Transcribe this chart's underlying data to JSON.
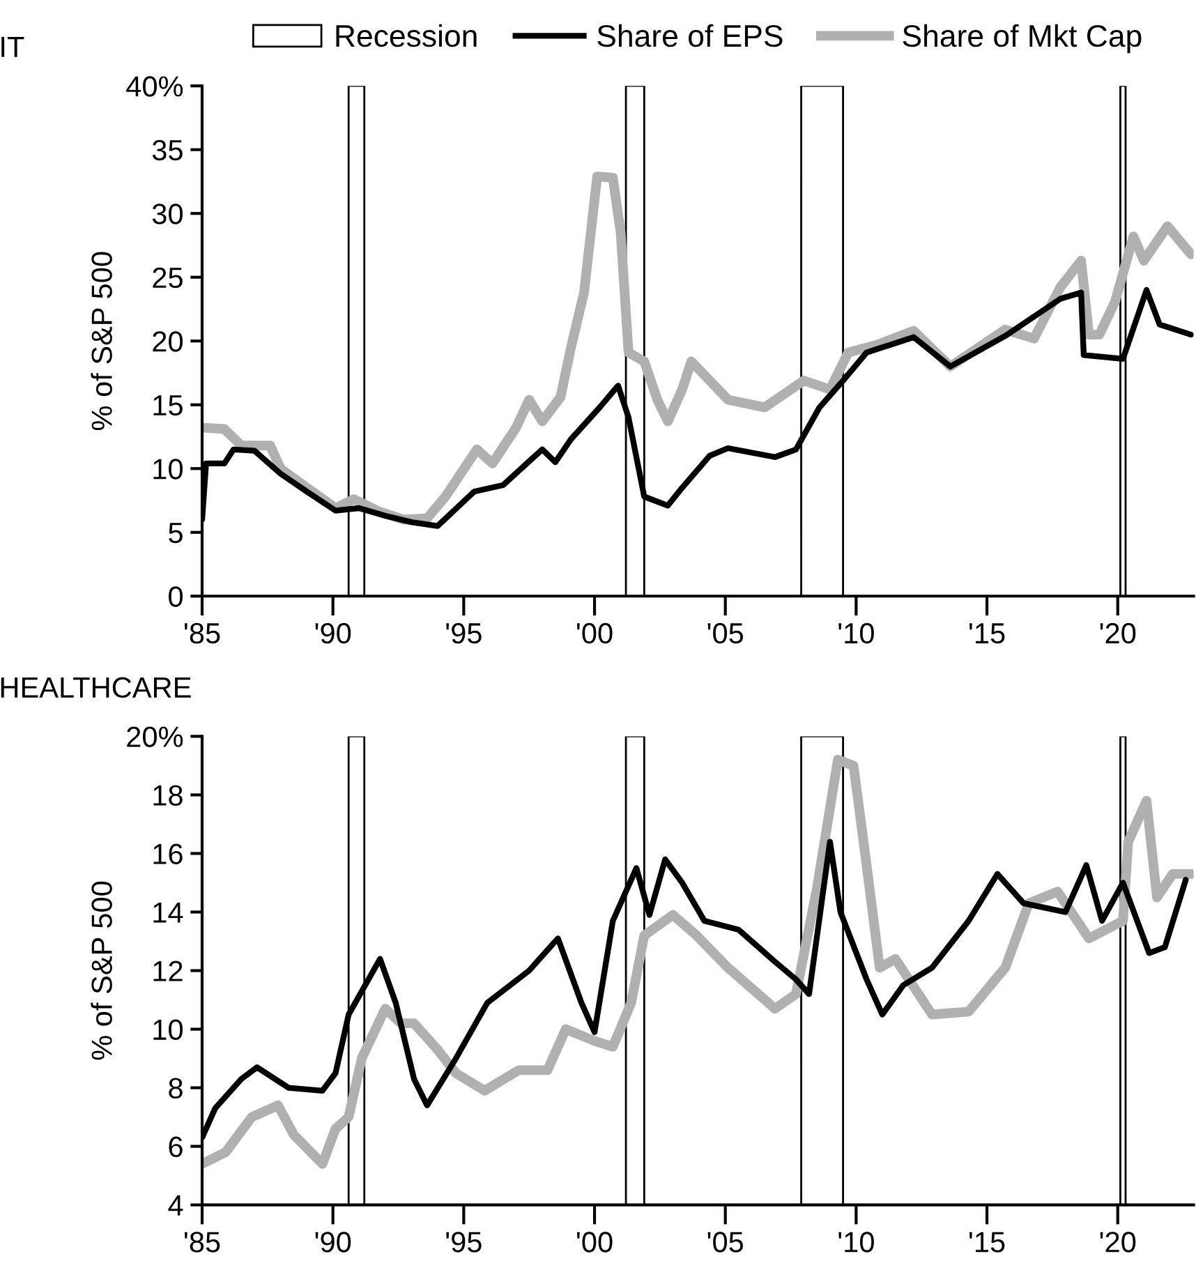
{
  "chart_data": [
    {
      "type": "line",
      "title": "IT",
      "ylabel": "% of S&P 500",
      "legend": "top",
      "xlim": [
        1985,
        2022.9
      ],
      "xticks": [
        {
          "value": 1985,
          "label": "'85"
        },
        {
          "value": 1990,
          "label": "'90"
        },
        {
          "value": 1995,
          "label": "'95"
        },
        {
          "value": 2000,
          "label": "'00"
        },
        {
          "value": 2005,
          "label": "'05"
        },
        {
          "value": 2010,
          "label": "'10"
        },
        {
          "value": 2015,
          "label": "'15"
        },
        {
          "value": 2020,
          "label": "'20"
        }
      ],
      "ylim": [
        0,
        40
      ],
      "yticks": [
        0,
        5,
        10,
        15,
        20,
        25,
        30,
        35,
        {
          "value": 40,
          "label": "40%"
        }
      ],
      "bands": [
        {
          "axis": "x",
          "from": 1990.6,
          "to": 1991.2,
          "label": "Recession",
          "color": "#ffffff"
        },
        {
          "axis": "x",
          "from": 2001.2,
          "to": 2001.9,
          "color": "#ffffff"
        },
        {
          "axis": "x",
          "from": 2007.9,
          "to": 2009.5,
          "color": "#ffffff"
        },
        {
          "axis": "x",
          "from": 2020.1,
          "to": 2020.3,
          "color": "#ffffff"
        }
      ],
      "series": [
        {
          "name": "Share of EPS",
          "color": "#000000",
          "x": [
            1985.0,
            1985.15,
            1985.85,
            1986.2,
            1987.0,
            1988.0,
            1989.0,
            1990.1,
            1991.0,
            1992.0,
            1993.0,
            1994.0,
            1995.4,
            1996.5,
            1998.0,
            1998.5,
            1999.1,
            2000.2,
            2000.9,
            2001.3,
            2001.9,
            2002.8,
            2003.35,
            2004.4,
            2005.1,
            2006.9,
            2007.7,
            2008.6,
            2009.5,
            2010.4,
            2012.2,
            2013.6,
            2015.7,
            2017.8,
            2018.6,
            2018.7,
            2020.2,
            2021.1,
            2021.6,
            2022.8
          ],
          "values": [
            6.0,
            10.4,
            10.4,
            11.5,
            11.4,
            9.6,
            8.2,
            6.7,
            6.9,
            6.3,
            5.8,
            5.5,
            8.2,
            8.7,
            11.5,
            10.5,
            12.3,
            14.8,
            16.5,
            14.0,
            7.8,
            7.1,
            8.5,
            11.0,
            11.6,
            10.9,
            11.5,
            14.8,
            16.9,
            19.1,
            20.3,
            18.0,
            20.4,
            23.3,
            23.8,
            18.9,
            18.6,
            24.0,
            21.3,
            20.5
          ]
        },
        {
          "name": "Share of Mkt Cap",
          "color": "#b0b0b0",
          "x": [
            1985.05,
            1985.85,
            1986.5,
            1987.6,
            1988.0,
            1989.0,
            1990.1,
            1990.8,
            1991.8,
            1992.7,
            1993.6,
            1994.3,
            1995.5,
            1996.1,
            1997.0,
            1997.5,
            1998.0,
            1998.7,
            1999.1,
            1999.6,
            2000.1,
            2000.7,
            2001.0,
            2001.3,
            2001.9,
            2002.4,
            2002.8,
            2003.35,
            2003.7,
            2005.1,
            2006.5,
            2008.0,
            2009.0,
            2009.7,
            2010.8,
            2012.2,
            2013.6,
            2015.7,
            2016.8,
            2017.8,
            2018.6,
            2018.9,
            2019.3,
            2019.9,
            2020.6,
            2021.0,
            2021.9,
            2022.8
          ],
          "values": [
            13.2,
            13.1,
            11.8,
            11.8,
            10.0,
            8.5,
            6.9,
            7.6,
            6.6,
            6.0,
            6.1,
            7.8,
            11.5,
            10.4,
            13.2,
            15.4,
            13.7,
            15.6,
            19.5,
            23.8,
            32.9,
            32.8,
            28.5,
            19.1,
            18.4,
            15.4,
            13.7,
            16.2,
            18.4,
            15.4,
            14.8,
            16.9,
            16.2,
            19.1,
            19.7,
            20.8,
            18.0,
            20.9,
            20.2,
            24.2,
            26.3,
            20.5,
            20.5,
            23.1,
            28.2,
            26.3,
            29.0,
            26.8
          ]
        }
      ]
    },
    {
      "type": "line",
      "title": "HEALTHCARE",
      "ylabel": "% of S&P 500",
      "xlim": [
        1985,
        2022.9
      ],
      "xticks": [
        {
          "value": 1985,
          "label": "'85"
        },
        {
          "value": 1990,
          "label": "'90"
        },
        {
          "value": 1995,
          "label": "'95"
        },
        {
          "value": 2000,
          "label": "'00"
        },
        {
          "value": 2005,
          "label": "'05"
        },
        {
          "value": 2010,
          "label": "'10"
        },
        {
          "value": 2015,
          "label": "'15"
        },
        {
          "value": 2020,
          "label": "'20"
        }
      ],
      "ylim": [
        4,
        20
      ],
      "yticks": [
        4,
        6,
        8,
        10,
        12,
        14,
        16,
        18,
        {
          "value": 20,
          "label": "20%"
        }
      ],
      "bands": [
        {
          "axis": "x",
          "from": 1990.6,
          "to": 1991.2,
          "color": "#ffffff"
        },
        {
          "axis": "x",
          "from": 2001.2,
          "to": 2001.9,
          "color": "#ffffff"
        },
        {
          "axis": "x",
          "from": 2007.9,
          "to": 2009.5,
          "color": "#ffffff"
        },
        {
          "axis": "x",
          "from": 2020.1,
          "to": 2020.3,
          "color": "#ffffff"
        }
      ],
      "series": [
        {
          "color": "#000000",
          "x": [
            1985.0,
            1985.5,
            1986.5,
            1987.1,
            1988.3,
            1989.6,
            1990.1,
            1990.6,
            1991.8,
            1992.4,
            1993.1,
            1993.6,
            1994.7,
            1995.9,
            1997.5,
            1998.6,
            1999.5,
            2000.0,
            2000.7,
            2001.6,
            2002.1,
            2002.7,
            2003.35,
            2004.2,
            2005.5,
            2006.9,
            2007.7,
            2008.2,
            2009.0,
            2009.4,
            2010.4,
            2011.0,
            2011.8,
            2012.9,
            2014.3,
            2015.4,
            2016.4,
            2018.0,
            2018.8,
            2019.4,
            2020.2,
            2021.2,
            2021.8,
            2022.6
          ],
          "values": [
            6.3,
            7.3,
            8.3,
            8.7,
            8.0,
            7.9,
            8.5,
            10.5,
            12.4,
            10.9,
            8.3,
            7.4,
            9.0,
            10.9,
            12.0,
            13.1,
            10.9,
            9.9,
            13.7,
            15.5,
            13.9,
            15.8,
            15.0,
            13.7,
            13.4,
            12.3,
            11.7,
            11.2,
            16.4,
            14.0,
            11.7,
            10.5,
            11.5,
            12.1,
            13.7,
            15.3,
            14.3,
            14.0,
            15.6,
            13.7,
            15.0,
            12.6,
            12.8,
            15.1
          ]
        },
        {
          "color": "#b0b0b0",
          "x": [
            1985.0,
            1985.9,
            1986.9,
            1987.9,
            1988.5,
            1989.6,
            1990.1,
            1990.6,
            1991.1,
            1992.0,
            1992.6,
            1993.1,
            1994.0,
            1994.7,
            1995.8,
            1997.1,
            1998.2,
            1998.9,
            2000.0,
            2000.7,
            2001.4,
            2001.9,
            2003.0,
            2003.9,
            2005.1,
            2006.9,
            2007.7,
            2008.5,
            2009.3,
            2009.9,
            2010.4,
            2010.9,
            2011.5,
            2012.9,
            2014.3,
            2015.7,
            2016.6,
            2017.7,
            2018.9,
            2020.2,
            2020.4,
            2021.1,
            2021.5,
            2022.1,
            2022.8
          ],
          "values": [
            5.4,
            5.8,
            7.0,
            7.4,
            6.4,
            5.4,
            6.6,
            7.0,
            9.0,
            10.7,
            10.2,
            10.2,
            9.3,
            8.5,
            7.9,
            8.6,
            8.6,
            10.0,
            9.6,
            9.4,
            10.9,
            13.2,
            13.9,
            13.2,
            12.1,
            10.7,
            11.2,
            14.8,
            19.2,
            19.0,
            15.6,
            12.1,
            12.4,
            10.5,
            10.6,
            12.1,
            14.3,
            14.7,
            13.1,
            13.7,
            16.4,
            17.8,
            14.5,
            15.3,
            15.3
          ]
        }
      ]
    }
  ]
}
